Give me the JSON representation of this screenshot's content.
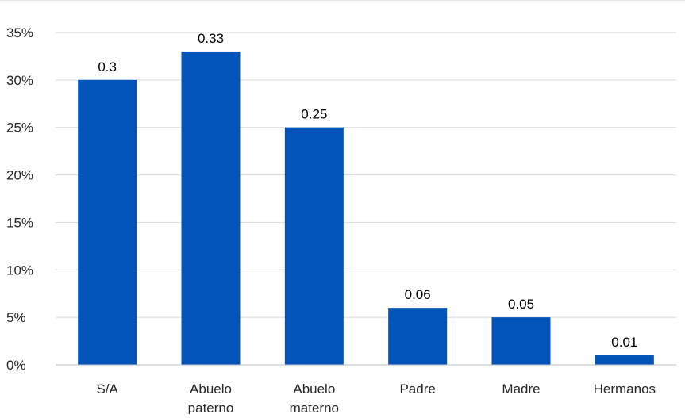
{
  "chart_data": {
    "type": "bar",
    "categories": [
      "S/A",
      "Abuelo paterno",
      "Abuelo materno",
      "Padre",
      "Madre",
      "Hermanos"
    ],
    "category_label_lines": [
      [
        "S/A"
      ],
      [
        "Abuelo",
        "paterno"
      ],
      [
        "Abuelo",
        "materno"
      ],
      [
        "Padre"
      ],
      [
        "Madre"
      ],
      [
        "Hermanos"
      ]
    ],
    "values": [
      0.3,
      0.33,
      0.25,
      0.06,
      0.05,
      0.01
    ],
    "data_labels": [
      "0.3",
      "0.33",
      "0.25",
      "0.06",
      "0.05",
      "0.01"
    ],
    "ylim": [
      0,
      0.35
    ],
    "yticks": [
      0,
      0.05,
      0.1,
      0.15,
      0.2,
      0.25,
      0.3,
      0.35
    ],
    "ytick_labels": [
      "0%",
      "5%",
      "10%",
      "15%",
      "20%",
      "25%",
      "30%",
      "35%"
    ],
    "title": "",
    "xlabel": "",
    "ylabel": "",
    "grid": true,
    "legend": "none",
    "colors": {
      "bar": "#0254b8",
      "grid": "#d9d9d9",
      "axis": "#bfbfbf",
      "text": "#000000",
      "tick_text": "#262626"
    }
  }
}
